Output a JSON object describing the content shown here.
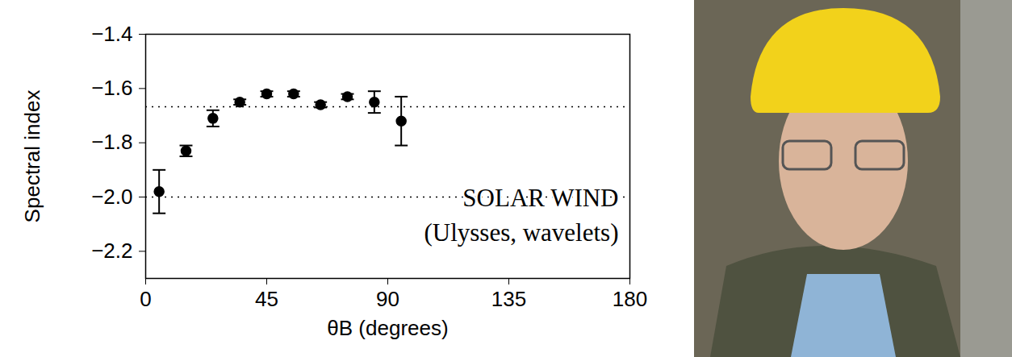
{
  "chart_data": {
    "type": "scatter",
    "x_label": "θB (degrees)",
    "y_label": "Spectral index",
    "annotations": [
      "SOLAR WIND",
      "(Ulysses, wavelets)"
    ],
    "x": [
      5,
      15,
      25,
      35,
      45,
      55,
      65,
      75,
      85,
      95
    ],
    "values": [
      -1.98,
      -1.83,
      -1.71,
      -1.65,
      -1.62,
      -1.62,
      -1.66,
      -1.63,
      -1.65,
      -1.72
    ],
    "errors": [
      0.08,
      0.02,
      0.03,
      0.01,
      0.01,
      0.01,
      0.01,
      0.01,
      0.04,
      0.09
    ],
    "hlines": [
      -1.667,
      -2
    ],
    "xlim": [
      0,
      180
    ],
    "ylim": [
      -2.3,
      -1.4
    ],
    "xticks": [
      0,
      45,
      90,
      135,
      180
    ],
    "yticks": [
      -1.4,
      -1.6,
      -1.8,
      -2,
      -2.2
    ],
    "color": "#000000",
    "marker": "circle",
    "line_style": "dotted"
  }
}
